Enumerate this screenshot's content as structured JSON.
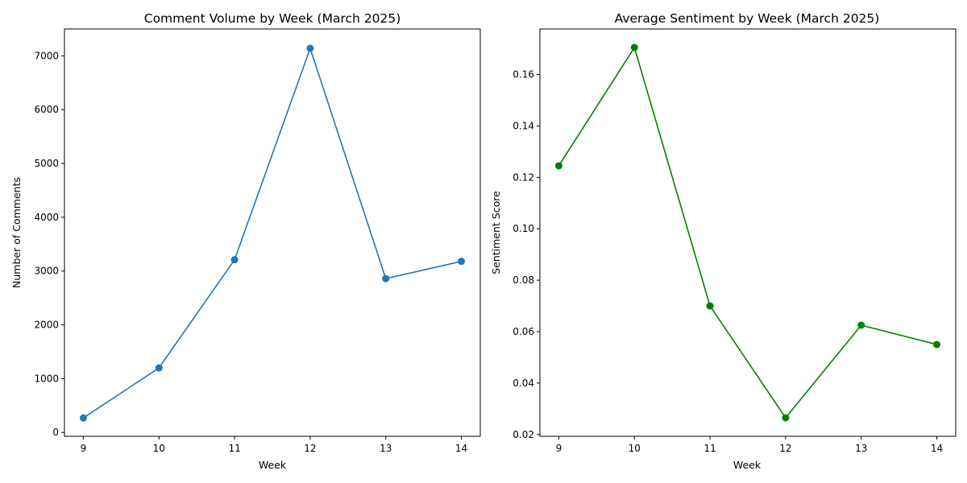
{
  "chart_data": [
    {
      "type": "line",
      "title": "Comment Volume by Week (March 2025)",
      "xlabel": "Week",
      "ylabel": "Number of Comments",
      "x": [
        9,
        10,
        11,
        12,
        13,
        14
      ],
      "series": [
        {
          "values": [
            270,
            1200,
            3210,
            7140,
            2860,
            3180
          ],
          "color": "#1f77b4"
        }
      ],
      "xlim": [
        8.75,
        14.25
      ],
      "ylim": [
        -72,
        7500
      ],
      "xticks": [
        "9",
        "10",
        "11",
        "12",
        "13",
        "14"
      ],
      "yticks": [
        "0",
        "1000",
        "2000",
        "3000",
        "4000",
        "5000",
        "6000",
        "7000"
      ],
      "grid": false
    },
    {
      "type": "line",
      "title": "Average Sentiment by Week (March 2025)",
      "xlabel": "Week",
      "ylabel": "Sentiment Score",
      "x": [
        9,
        10,
        11,
        12,
        13,
        14
      ],
      "series": [
        {
          "values": [
            0.1245,
            0.1705,
            0.07,
            0.0265,
            0.0625,
            0.055
          ],
          "color": "#008000"
        }
      ],
      "xlim": [
        8.75,
        14.25
      ],
      "ylim": [
        0.0193,
        0.1777
      ],
      "xticks": [
        "9",
        "10",
        "11",
        "12",
        "13",
        "14"
      ],
      "yticks": [
        "0.02",
        "0.04",
        "0.06",
        "0.08",
        "0.10",
        "0.12",
        "0.14",
        "0.16"
      ],
      "grid": false
    }
  ]
}
